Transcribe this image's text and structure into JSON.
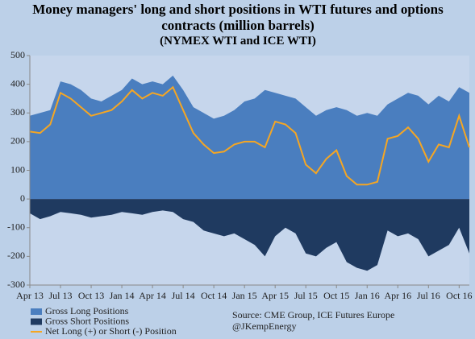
{
  "chart_data": {
    "type": "area",
    "title": "Money managers' long and short positions in WTI futures and options contracts (million barrels)",
    "subtitle": "(NYMEX WTI and ICE WTI)",
    "source": "Source:  CME Group, ICE Futures Europe",
    "credit": "@JKempEnergy",
    "categories": [
      "Apr 13",
      null,
      null,
      "Jul 13",
      null,
      null,
      "Oct 13",
      null,
      null,
      "Jan 14",
      null,
      null,
      "Apr 14",
      null,
      null,
      "Jul 14",
      null,
      null,
      "Oct 14",
      null,
      null,
      "Jan 15",
      null,
      null,
      "Apr 15",
      null,
      null,
      "Jul 15",
      null,
      null,
      "Oct 15",
      null,
      null,
      "Jan 16",
      null,
      null,
      "Apr 16",
      null,
      null,
      "Jul 16",
      null,
      null,
      "Oct 16",
      null
    ],
    "series": [
      {
        "name": "Gross Long Positions",
        "color": "#4a7ebf",
        "kind": "area",
        "values": [
          290,
          300,
          310,
          410,
          400,
          380,
          350,
          340,
          360,
          380,
          420,
          400,
          410,
          400,
          430,
          380,
          320,
          300,
          280,
          290,
          310,
          340,
          350,
          380,
          370,
          360,
          350,
          320,
          290,
          310,
          320,
          310,
          290,
          300,
          290,
          330,
          350,
          370,
          360,
          330,
          360,
          340,
          390,
          370
        ]
      },
      {
        "name": "Gross Short Positions",
        "color": "#1f3a60",
        "kind": "area",
        "values": [
          -50,
          -70,
          -60,
          -45,
          -50,
          -55,
          -65,
          -60,
          -55,
          -45,
          -50,
          -55,
          -45,
          -40,
          -45,
          -70,
          -80,
          -110,
          -120,
          -130,
          -120,
          -140,
          -160,
          -200,
          -130,
          -100,
          -120,
          -190,
          -200,
          -170,
          -150,
          -220,
          -240,
          -250,
          -230,
          -110,
          -130,
          -120,
          -140,
          -200,
          -180,
          -160,
          -100,
          -190
        ]
      },
      {
        "name": "Net Long (+) or Short (-) Position",
        "color": "#f5a623",
        "kind": "line",
        "values": [
          235,
          230,
          260,
          370,
          350,
          320,
          290,
          300,
          310,
          340,
          380,
          350,
          370,
          360,
          390,
          310,
          230,
          190,
          160,
          165,
          190,
          200,
          200,
          180,
          270,
          260,
          230,
          120,
          90,
          140,
          170,
          80,
          50,
          50,
          60,
          210,
          220,
          250,
          210,
          130,
          190,
          180,
          290,
          180
        ]
      }
    ],
    "ylim": [
      -300,
      500
    ],
    "yticks": [
      500,
      400,
      300,
      200,
      100,
      0,
      -100,
      -200,
      -300
    ]
  }
}
